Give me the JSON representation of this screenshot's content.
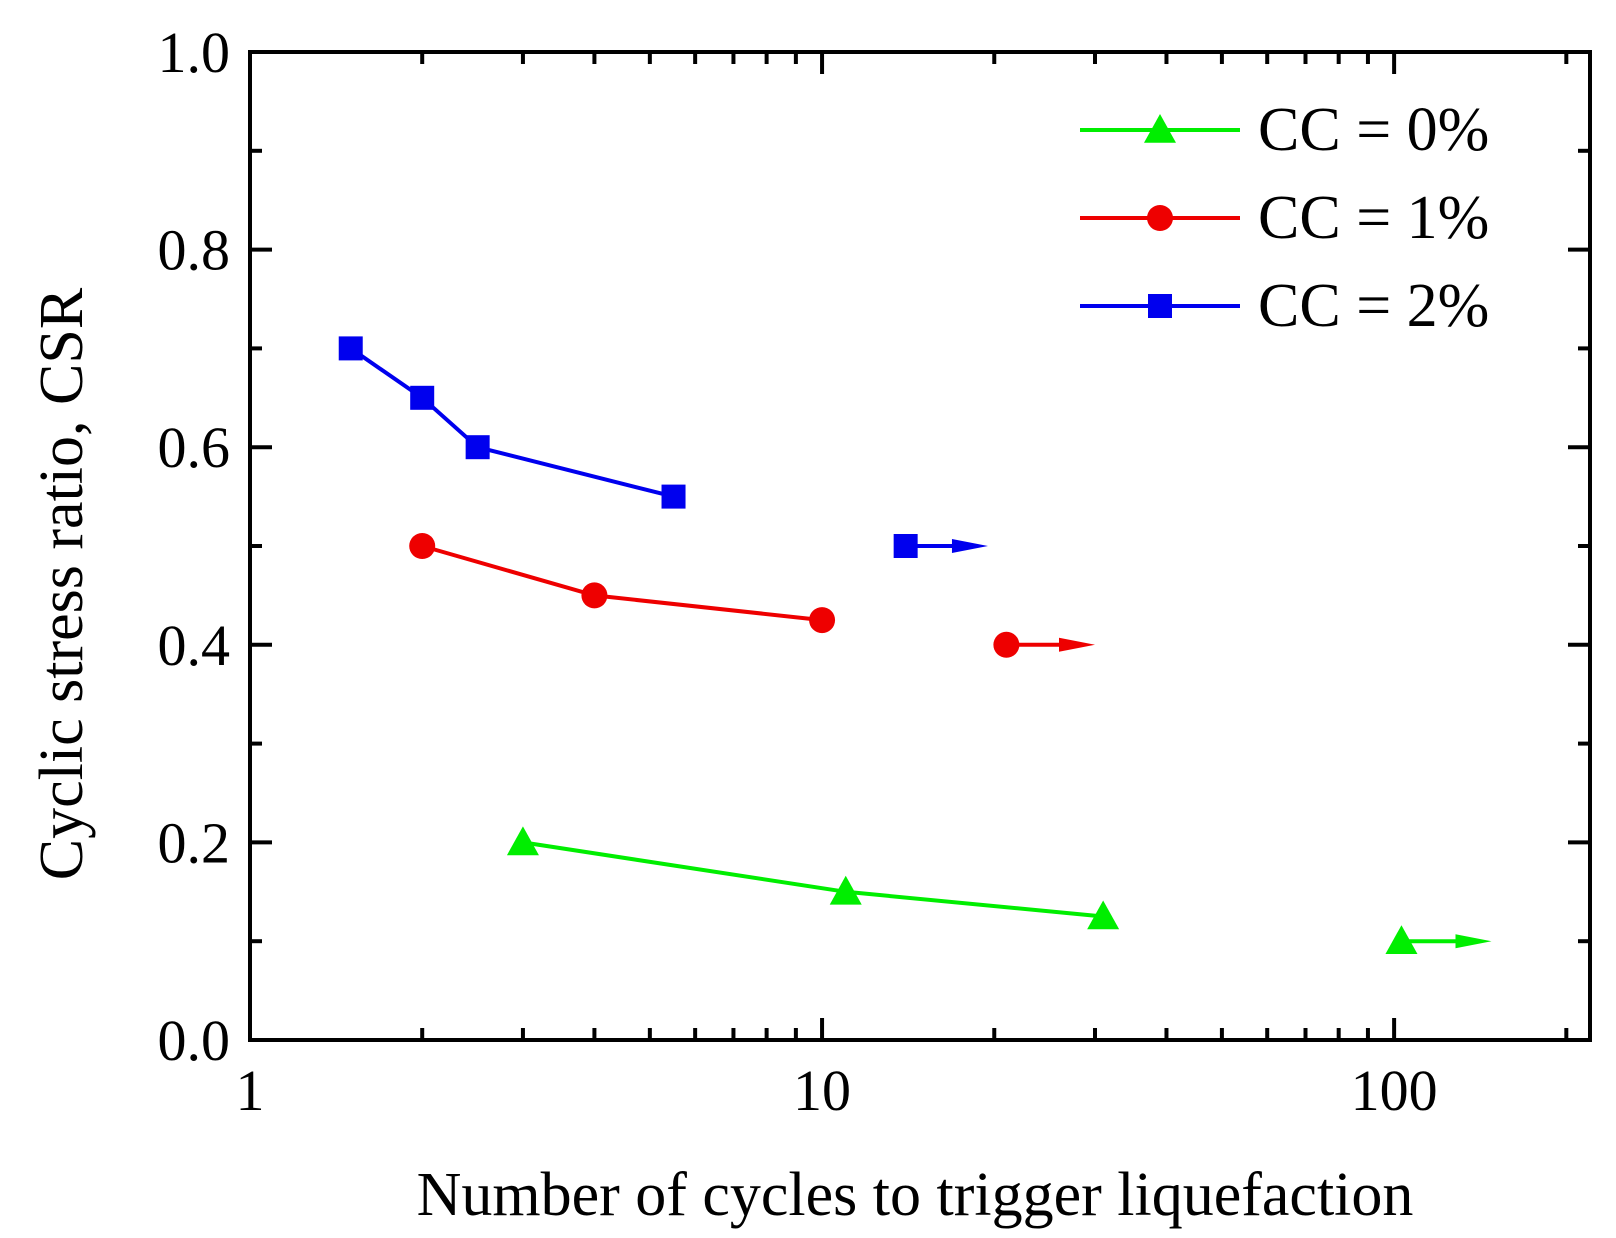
{
  "chart_data": {
    "type": "line",
    "title": "",
    "xlabel": "Number of cycles to trigger liquefaction",
    "ylabel": "Cyclic stress ratio, CSR",
    "xscale": "log",
    "xlim": [
      1,
      220
    ],
    "ylim": [
      0.0,
      1.0
    ],
    "xticks": [
      {
        "value": 1,
        "label": "1"
      },
      {
        "value": 10,
        "label": "10"
      },
      {
        "value": 100,
        "label": "100"
      }
    ],
    "yticks": [
      {
        "value": 0.0,
        "label": "0.0"
      },
      {
        "value": 0.2,
        "label": "0.2"
      },
      {
        "value": 0.4,
        "label": "0.4"
      },
      {
        "value": 0.6,
        "label": "0.6"
      },
      {
        "value": 0.8,
        "label": "0.8"
      },
      {
        "value": 1.0,
        "label": "1.0"
      }
    ],
    "legend_position": "top-right",
    "series": [
      {
        "name": "CC = 0%",
        "color": "#00ee00",
        "marker": "triangle",
        "points": [
          [
            3.0,
            0.2
          ],
          [
            11.0,
            0.15
          ],
          [
            31.0,
            0.125
          ]
        ],
        "no_liquefaction": {
          "point": [
            103,
            0.1
          ],
          "arrow_to": 148
        }
      },
      {
        "name": "CC = 1%",
        "color": "#ee0000",
        "marker": "circle",
        "points": [
          [
            2.0,
            0.5
          ],
          [
            4.0,
            0.45
          ],
          [
            10.0,
            0.425
          ]
        ],
        "no_liquefaction": {
          "point": [
            21,
            0.4
          ],
          "arrow_to": 30
        }
      },
      {
        "name": "CC = 2%",
        "color": "#0000ee",
        "marker": "square",
        "points": [
          [
            1.5,
            0.7
          ],
          [
            2.0,
            0.65
          ],
          [
            2.5,
            0.6
          ],
          [
            5.5,
            0.55
          ]
        ],
        "no_liquefaction": {
          "point": [
            14,
            0.5
          ],
          "arrow_to": 19.5
        }
      }
    ]
  }
}
